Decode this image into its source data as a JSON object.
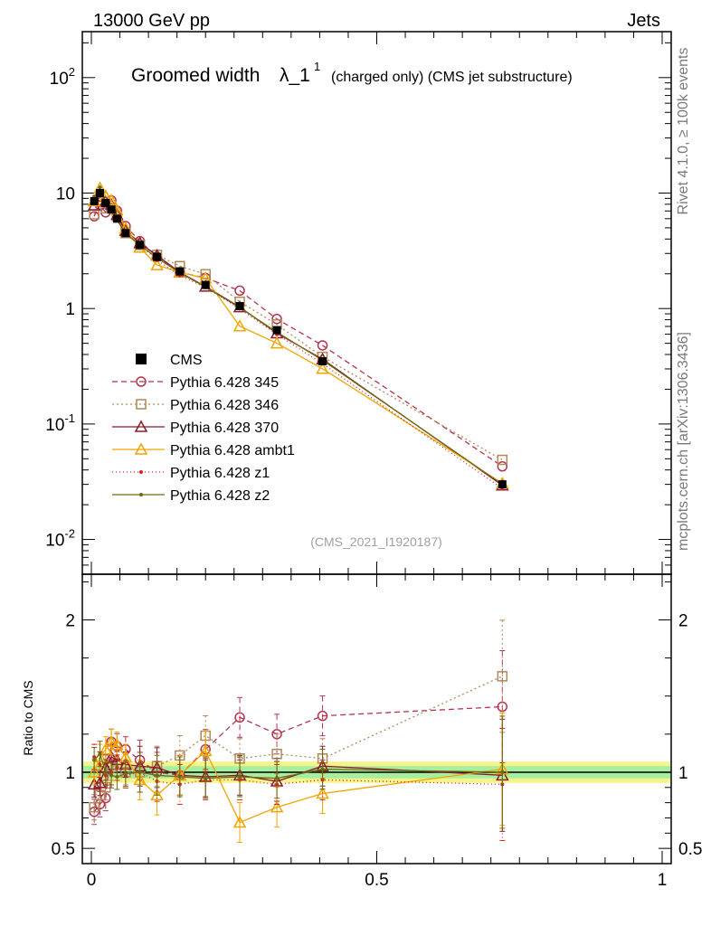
{
  "header": {
    "energy": "13000 GeV pp",
    "category": "Jets"
  },
  "side": {
    "rivet": "Rivet 4.1.0, ≥ 100k events",
    "site": "mcplots.cern.ch [arXiv:1306.3436]"
  },
  "chart_data": {
    "type": "line",
    "title": "Groomed width",
    "title_symbol": "λ_1",
    "title_sup": "1",
    "subtitle": "(charged only) (CMS jet substructure)",
    "watermark": "(CMS_2021_I1920187)",
    "ratio_ylabel": "Ratio to CMS",
    "xlim": [
      0,
      1
    ],
    "ylim_log": [
      0.005,
      250
    ],
    "ratio_ylim": [
      0.4,
      2.3
    ],
    "x_ticks": [
      "0",
      "0.5",
      "1"
    ],
    "y_ticks": [
      "10^-2",
      "10^-1",
      "1",
      "10",
      "10^2"
    ],
    "ratio_ticks": [
      "0.5",
      "1",
      "2"
    ],
    "x": [
      0.005,
      0.015,
      0.025,
      0.035,
      0.045,
      0.06,
      0.085,
      0.115,
      0.155,
      0.2,
      0.26,
      0.325,
      0.405,
      0.72
    ],
    "reference": {
      "name": "CMS",
      "values": [
        8.5,
        10.0,
        8.2,
        7.2,
        6.0,
        4.5,
        3.55,
        2.8,
        2.1,
        1.6,
        1.05,
        0.65,
        0.35,
        0.03
      ]
    },
    "series": [
      {
        "name": "Pythia 6.428 345",
        "color": "#b5334f",
        "marker": "circle",
        "dash": "6,4",
        "ratio": [
          0.74,
          0.79,
          0.83,
          1.2,
          1.17,
          1.15,
          1.08,
          1.0,
          0.98,
          1.15,
          1.36,
          1.25,
          1.37,
          1.43
        ]
      },
      {
        "name": "Pythia 6.428 346",
        "color": "#b0895b",
        "marker": "square",
        "dash": "2,3",
        "ratio": [
          0.77,
          0.85,
          0.9,
          1.03,
          1.05,
          1.0,
          1.0,
          1.04,
          1.11,
          1.24,
          1.09,
          1.12,
          1.09,
          1.63
        ]
      },
      {
        "name": "Pythia 6.428 370",
        "color": "#8a1a2c",
        "marker": "triangle",
        "dash": "",
        "ratio": [
          0.92,
          0.93,
          1.03,
          1.1,
          1.08,
          1.05,
          1.04,
          1.03,
          0.98,
          0.97,
          0.98,
          0.94,
          1.04,
          0.98
        ]
      },
      {
        "name": "Pythia 6.428 ambt1",
        "color": "#f2a400",
        "marker": "triangle",
        "dash": "",
        "ratio": [
          1.0,
          1.1,
          1.15,
          1.2,
          1.18,
          1.1,
          0.95,
          0.85,
          0.98,
          1.14,
          0.67,
          0.77,
          0.86,
          1.02
        ]
      },
      {
        "name": "Pythia 6.428 z1",
        "color": "#d62020",
        "marker": "dot",
        "dash": "1,3",
        "ratio": [
          1.1,
          1.05,
          0.98,
          1.0,
          1.03,
          0.98,
          1.0,
          0.94,
          0.92,
          0.95,
          0.95,
          0.92,
          0.95,
          0.92
        ]
      },
      {
        "name": "Pythia 6.428 z2",
        "color": "#6b6b10",
        "marker": "dot",
        "dash": "",
        "ratio": [
          1.08,
          1.12,
          1.0,
          0.98,
          0.97,
          0.99,
          1.0,
          0.98,
          0.97,
          0.96,
          0.97,
          0.96,
          1.02,
          1.0
        ]
      }
    ]
  }
}
